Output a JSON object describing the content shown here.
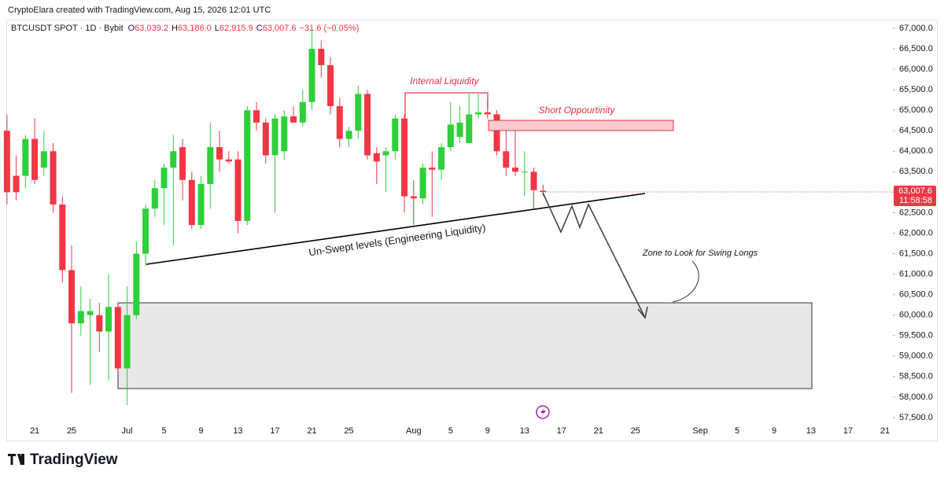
{
  "header": "CryptoElara created with TradingView.com, Aug 15, 2026 12:01 UTC",
  "brand": "TradingView",
  "chart_data": {
    "type": "candlestick",
    "legend": {
      "symbol": "BTCUSDT SPOT · 1D · Bybit",
      "fields": [
        {
          "key": "O",
          "label": "63,039.2"
        },
        {
          "key": "H",
          "label": "63,186.0"
        },
        {
          "key": "L",
          "label": "62,915.9"
        },
        {
          "key": "C",
          "label": "63,007.6"
        }
      ],
      "change": "−31.6 (−0.05%)"
    },
    "last_price_label": "63,007.6",
    "countdown": "11:58:58",
    "up_color": "#2fcf3a",
    "down_color": "#f23645",
    "grid": false,
    "open": [
      64500,
      63400,
      63400,
      64300,
      63600,
      64000,
      62700,
      61100,
      59800,
      60000,
      60000,
      59600,
      60200,
      58700,
      60000,
      61500,
      62600,
      63100,
      63600,
      64100,
      63300,
      62200,
      63200,
      64100,
      63800,
      63800,
      62300,
      65000,
      64700,
      63900,
      64000,
      64850,
      64700,
      65200,
      66500,
      66100,
      65100,
      64300,
      64500,
      65400,
      63950,
      63900,
      64000,
      64800,
      62900,
      62850,
      63600,
      63550,
      64100,
      64350,
      64200,
      64900,
      64950,
      64900,
      64000,
      63600,
      63500,
      63500,
      63039.2
    ],
    "high": [
      64900,
      63900,
      64400,
      64800,
      64500,
      64200,
      62900,
      61700,
      60700,
      60400,
      60300,
      61000,
      60300,
      60700,
      61800,
      62700,
      63300,
      63700,
      64400,
      64300,
      63500,
      63400,
      64700,
      64500,
      64000,
      64000,
      65100,
      65200,
      64800,
      64900,
      65000,
      65100,
      65500,
      67000,
      66700,
      66300,
      65300,
      64600,
      65600,
      65500,
      64100,
      64100,
      64900,
      64900,
      63300,
      63700,
      64000,
      64200,
      65200,
      65100,
      65400,
      65400,
      65300,
      65000,
      64500,
      64500,
      64000,
      63600,
      63186
    ],
    "low": [
      62700,
      62800,
      63100,
      63200,
      63400,
      62500,
      60800,
      58100,
      59500,
      58300,
      59100,
      58400,
      58600,
      57800,
      59900,
      61200,
      62400,
      62200,
      61700,
      62800,
      62100,
      62100,
      62600,
      63500,
      63700,
      62000,
      62200,
      64500,
      63700,
      62500,
      63800,
      64700,
      64600,
      65000,
      65800,
      64900,
      64100,
      64100,
      64300,
      63800,
      63200,
      63000,
      63800,
      62500,
      62200,
      62700,
      62400,
      63300,
      64000,
      64200,
      64200,
      64800,
      64800,
      63900,
      63400,
      63400,
      62900,
      62600,
      62915.9
    ],
    "close": [
      63000,
      63000,
      64300,
      63300,
      64000,
      62700,
      61100,
      59800,
      60100,
      60100,
      59600,
      60200,
      58700,
      60000,
      61500,
      62600,
      63100,
      63600,
      64000,
      63300,
      62200,
      63200,
      64100,
      63800,
      63750,
      62300,
      65000,
      64700,
      63900,
      64800,
      64850,
      64700,
      65200,
      66500,
      66100,
      65100,
      64300,
      64500,
      65400,
      63900,
      63750,
      64000,
      64800,
      62900,
      62850,
      63600,
      63550,
      64100,
      64650,
      64700,
      64900,
      64950,
      64900,
      64000,
      63600,
      63500,
      63500,
      63050,
      63007.6
    ],
    "xlim": [
      0.1,
      95.85
    ],
    "xticks": [
      {
        "value": 3,
        "label": "21"
      },
      {
        "value": 7,
        "label": "25"
      },
      {
        "value": 13,
        "label": "Jul"
      },
      {
        "value": 17,
        "label": "5"
      },
      {
        "value": 21,
        "label": "9"
      },
      {
        "value": 25,
        "label": "13"
      },
      {
        "value": 29,
        "label": "17"
      },
      {
        "value": 33,
        "label": "21"
      },
      {
        "value": 37,
        "label": "25"
      },
      {
        "value": 44,
        "label": "Aug"
      },
      {
        "value": 48,
        "label": "5"
      },
      {
        "value": 52,
        "label": "9"
      },
      {
        "value": 56,
        "label": "13"
      },
      {
        "value": 60,
        "label": "17"
      },
      {
        "value": 64,
        "label": "21"
      },
      {
        "value": 68,
        "label": "25"
      },
      {
        "value": 75,
        "label": "Sep"
      },
      {
        "value": 79,
        "label": "5"
      },
      {
        "value": 83,
        "label": "9"
      },
      {
        "value": 87,
        "label": "13"
      },
      {
        "value": 91,
        "label": "17"
      },
      {
        "value": 95,
        "label": "21"
      }
    ],
    "ylim": [
      57230,
      67115
    ],
    "yticks": [
      {
        "value": 57500,
        "label": "57,500.0"
      },
      {
        "value": 58000,
        "label": "58,000.0"
      },
      {
        "value": 58500,
        "label": "58,500.0"
      },
      {
        "value": 59000,
        "label": "59,000.0"
      },
      {
        "value": 59500,
        "label": "59,500.0"
      },
      {
        "value": 60000,
        "label": "60,000.0"
      },
      {
        "value": 60500,
        "label": "60,500.0"
      },
      {
        "value": 61000,
        "label": "61,000.0"
      },
      {
        "value": 61500,
        "label": "61,500.0"
      },
      {
        "value": 62000,
        "label": "62,000.0"
      },
      {
        "value": 62500,
        "label": "62,500.0"
      },
      {
        "value": 63000,
        "label": "63,000.0"
      },
      {
        "value": 63500,
        "label": "63,500.0"
      },
      {
        "value": 64000,
        "label": "64,000.0"
      },
      {
        "value": 64500,
        "label": "64,500.0"
      },
      {
        "value": 65000,
        "label": "65,000.0"
      },
      {
        "value": 65500,
        "label": "65,500.0"
      },
      {
        "value": 66000,
        "label": "66,000.0"
      },
      {
        "value": 66500,
        "label": "66,500.0"
      },
      {
        "value": 67000,
        "label": "67,000.0"
      }
    ],
    "annotations": {
      "internal": "Internal Liquidity",
      "short": "Short Oppourtinity",
      "unswept": "Un-Swept levels (Engineering Liquidity)",
      "zone": "Zone to Look for Swing Longs"
    }
  }
}
